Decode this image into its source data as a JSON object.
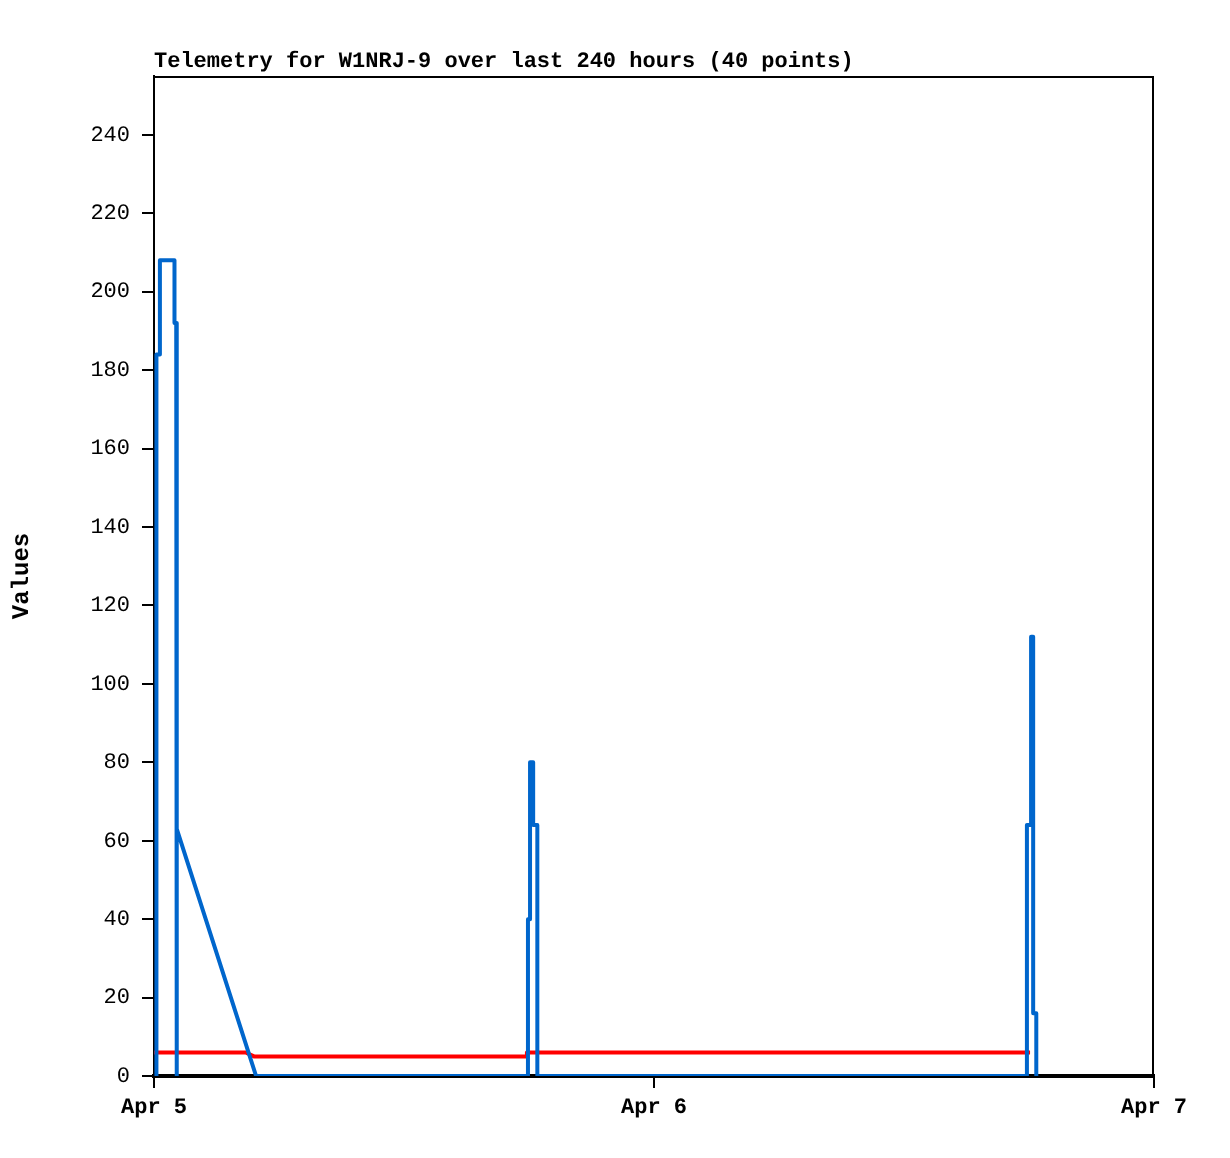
{
  "chart_data": {
    "type": "line",
    "title": "Telemetry for W1NRJ-9 over last 240 hours (40 points)",
    "ylabel": "Values",
    "series": [
      {
        "color": "#0066cc",
        "x": [
          "--04-05T00:07",
          "--04-05T00:07",
          "--04-05T00:17",
          "--04-05T00:17",
          "--04-05T00:59",
          "--04-05T00:59",
          "--04-05T01:04",
          "--04-05T01:04",
          "--04-05T01:07",
          "--04-05T04:54",
          "--04-05T17:57",
          "--04-05T17:57",
          "--04-05T18:03",
          "--04-05T18:03",
          "--04-05T18:12",
          "--04-05T18:12",
          "--04-05T18:24",
          "--04-05T18:24",
          "--04-06T17:54",
          "--04-06T17:54",
          "--04-06T18:06",
          "--04-06T18:06",
          "--04-06T18:12",
          "--04-06T18:12",
          "--04-06T18:21",
          "--04-06T18:21"
        ],
        "values": [
          0,
          184,
          184,
          208,
          208,
          192,
          192,
          0,
          63,
          0,
          0,
          40,
          40,
          80,
          80,
          64,
          64,
          0,
          0,
          64,
          64,
          112,
          112,
          16,
          16,
          0
        ]
      },
      {
        "color": "#ff0000",
        "x": [
          "--04-05T00:00",
          "--04-05T04:24",
          "--04-05T04:48",
          "--04-05T17:54",
          "--04-05T17:54",
          "--04-06T18:03"
        ],
        "values": [
          6,
          6,
          5,
          5,
          6,
          6
        ]
      }
    ],
    "xlim": [
      "--04-05",
      "--04-07"
    ],
    "xticks": [
      {
        "value": "--04-05",
        "label": "Apr 5"
      },
      {
        "value": "--04-06",
        "label": "Apr 6"
      },
      {
        "value": "--04-07",
        "label": "Apr 7"
      }
    ],
    "ylim": [
      0,
      255
    ],
    "yticks": [
      0,
      20,
      40,
      60,
      80,
      100,
      120,
      140,
      160,
      180,
      200,
      220,
      240
    ],
    "grid": false,
    "legend": false,
    "marker": "none",
    "line_style": "solid"
  }
}
